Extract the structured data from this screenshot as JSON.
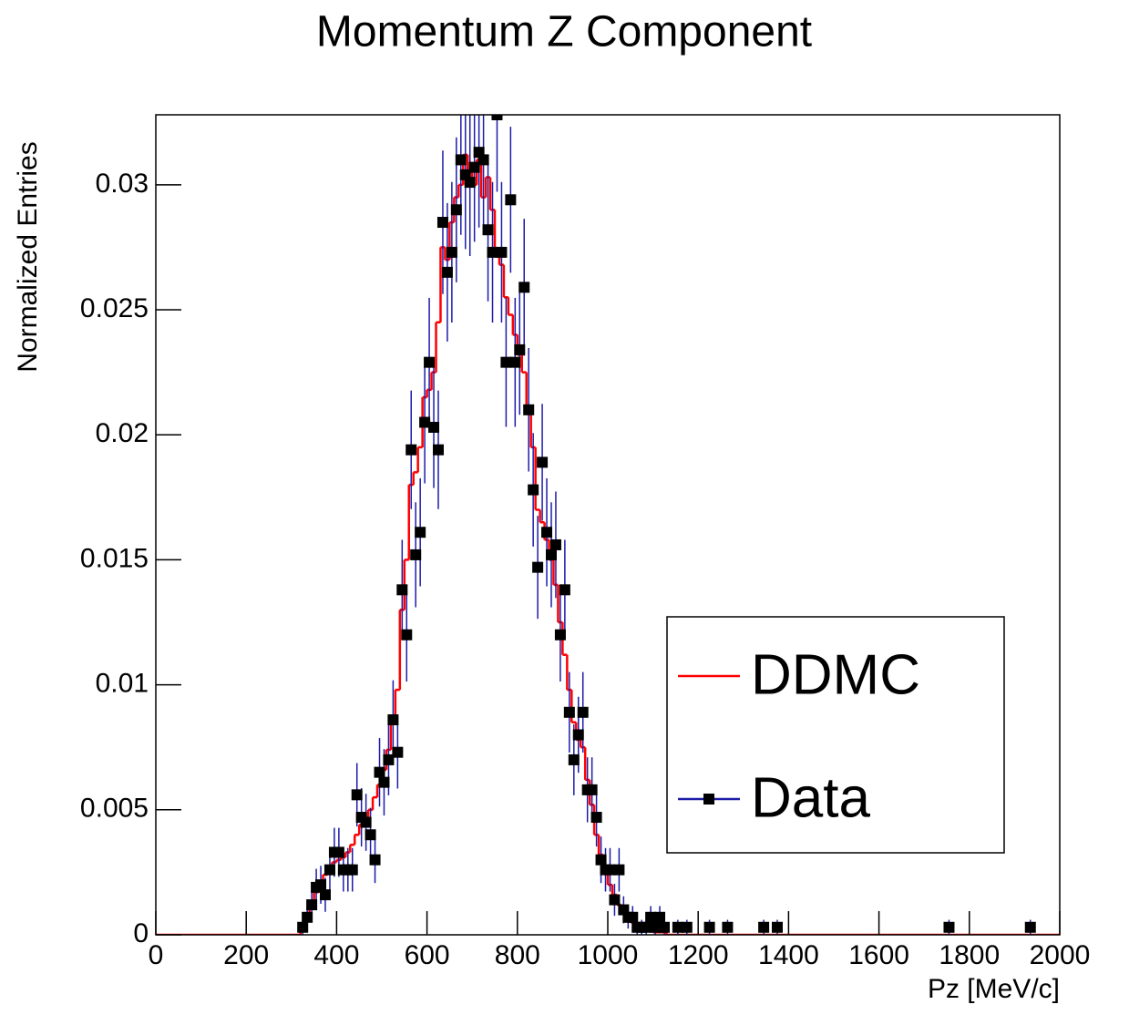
{
  "chart_data": {
    "type": "histogram",
    "title": "Momentum Z Component",
    "x_label": "Pz [MeV/c]",
    "y_label": "Normalized Entries",
    "xlim": [
      0,
      2000
    ],
    "ylim": [
      0,
      0.0328
    ],
    "xticks": [
      0,
      200,
      400,
      600,
      800,
      1000,
      1200,
      1400,
      1600,
      1800,
      2000
    ],
    "yticks": [
      0,
      0.005,
      0.01,
      0.015,
      0.02,
      0.025,
      0.03
    ],
    "legend": "right",
    "series": [
      {
        "name": "DDMC",
        "color": "#ff0000",
        "bins": [
          0,
          320,
          330,
          340,
          350,
          360,
          370,
          380,
          390,
          400,
          410,
          420,
          430,
          440,
          450,
          460,
          470,
          480,
          490,
          500,
          510,
          520,
          530,
          540,
          550,
          560,
          570,
          580,
          590,
          600,
          610,
          620,
          630,
          640,
          650,
          660,
          670,
          680,
          690,
          700,
          710,
          720,
          730,
          740,
          750,
          760,
          770,
          780,
          790,
          800,
          810,
          820,
          830,
          840,
          850,
          860,
          870,
          880,
          890,
          900,
          910,
          920,
          930,
          940,
          950,
          960,
          970,
          980,
          990,
          1000,
          1010,
          1020,
          1030,
          1040,
          1050,
          1060,
          1070,
          1080,
          1090,
          1100,
          1110,
          1120,
          1130,
          2000
        ],
        "values": [
          0,
          0.0004,
          0.0008,
          0.0013,
          0.0017,
          0.0021,
          0.0024,
          0.0027,
          0.0029,
          0.003,
          0.0031,
          0.0033,
          0.0036,
          0.004,
          0.0044,
          0.0047,
          0.005,
          0.0055,
          0.006,
          0.0066,
          0.0074,
          0.0085,
          0.0098,
          0.013,
          0.015,
          0.018,
          0.0185,
          0.0195,
          0.0215,
          0.0218,
          0.0225,
          0.0245,
          0.0275,
          0.027,
          0.0285,
          0.0295,
          0.03,
          0.0312,
          0.0305,
          0.03,
          0.031,
          0.0295,
          0.0303,
          0.029,
          0.0272,
          0.0268,
          0.0255,
          0.0248,
          0.024,
          0.0232,
          0.0225,
          0.021,
          0.0195,
          0.017,
          0.0165,
          0.0158,
          0.015,
          0.014,
          0.0125,
          0.0112,
          0.0098,
          0.0085,
          0.0078,
          0.0075,
          0.0062,
          0.0052,
          0.004,
          0.0032,
          0.0026,
          0.002,
          0.0016,
          0.0012,
          0.0009,
          0.0007,
          0.0005,
          0.0004,
          0.0003,
          0.0002,
          0.0002,
          0.0001,
          0.0001,
          0.0001,
          0
        ]
      },
      {
        "name": "Data",
        "color": "#000000",
        "error_color": "#1c1ca8",
        "x": [
          325,
          335,
          345,
          355,
          365,
          375,
          385,
          395,
          405,
          415,
          425,
          435,
          445,
          455,
          465,
          475,
          485,
          495,
          505,
          515,
          525,
          535,
          545,
          555,
          565,
          575,
          585,
          595,
          605,
          615,
          625,
          635,
          645,
          655,
          665,
          675,
          685,
          695,
          705,
          715,
          725,
          735,
          745,
          755,
          765,
          775,
          785,
          795,
          805,
          815,
          825,
          835,
          845,
          855,
          865,
          875,
          885,
          895,
          905,
          915,
          925,
          935,
          945,
          955,
          965,
          975,
          985,
          995,
          1005,
          1015,
          1025,
          1035,
          1045,
          1055,
          1065,
          1075,
          1085,
          1095,
          1105,
          1115,
          1125,
          1155,
          1175,
          1225,
          1265,
          1345,
          1375,
          1755,
          1935
        ],
        "values": [
          0.0003,
          0.0007,
          0.0012,
          0.0019,
          0.002,
          0.0016,
          0.0026,
          0.0033,
          0.0033,
          0.0026,
          0.0026,
          0.0026,
          0.0056,
          0.0047,
          0.0045,
          0.004,
          0.003,
          0.0065,
          0.0061,
          0.007,
          0.0086,
          0.0073,
          0.0138,
          0.012,
          0.0194,
          0.0152,
          0.0161,
          0.0205,
          0.0229,
          0.0203,
          0.0194,
          0.0285,
          0.0265,
          0.0273,
          0.029,
          0.031,
          0.0304,
          0.0301,
          0.0307,
          0.0313,
          0.031,
          0.0282,
          0.0273,
          0.0328,
          0.0273,
          0.0229,
          0.0294,
          0.0229,
          0.0234,
          0.0259,
          0.021,
          0.0178,
          0.0147,
          0.0189,
          0.0161,
          0.0152,
          0.0156,
          0.012,
          0.0138,
          0.0089,
          0.007,
          0.008,
          0.0089,
          0.0058,
          0.0058,
          0.0047,
          0.003,
          0.0026,
          0.0026,
          0.0014,
          0.0026,
          0.001,
          0.0007,
          0.0007,
          0.0003,
          0.0003,
          0.0003,
          0.0007,
          0.0003,
          0.0007,
          0.0003,
          0.0003,
          0.0003,
          0.0003,
          0.0003,
          0.0003,
          0.0003,
          0.0003,
          0.0003
        ],
        "errors": [
          0.0003,
          0.00045,
          0.00059,
          0.00074,
          0.00076,
          0.00068,
          0.00087,
          0.00098,
          0.00098,
          0.00087,
          0.00087,
          0.00087,
          0.00127,
          0.00117,
          0.00114,
          0.00108,
          0.00093,
          0.00137,
          0.00133,
          0.00142,
          0.00158,
          0.00145,
          0.002,
          0.00187,
          0.00237,
          0.0021,
          0.00216,
          0.00244,
          0.00258,
          0.00243,
          0.00237,
          0.00287,
          0.00277,
          0.00281,
          0.0029,
          0.003,
          0.00297,
          0.00295,
          0.00298,
          0.00301,
          0.003,
          0.00286,
          0.00281,
          0.00308,
          0.00281,
          0.00258,
          0.00292,
          0.00258,
          0.0026,
          0.00274,
          0.00247,
          0.00227,
          0.00206,
          0.00234,
          0.00216,
          0.0021,
          0.00213,
          0.00187,
          0.002,
          0.00161,
          0.00142,
          0.00152,
          0.00161,
          0.0013,
          0.0013,
          0.00117,
          0.00093,
          0.00087,
          0.00087,
          0.00064,
          0.00087,
          0.00054,
          0.00045,
          0.00045,
          0.0003,
          0.0003,
          0.0003,
          0.00045,
          0.0003,
          0.00045,
          0.0003,
          0.0003,
          0.0003,
          0.0003,
          0.0003,
          0.0003,
          0.0003,
          0.0003,
          0.0003
        ]
      }
    ]
  }
}
